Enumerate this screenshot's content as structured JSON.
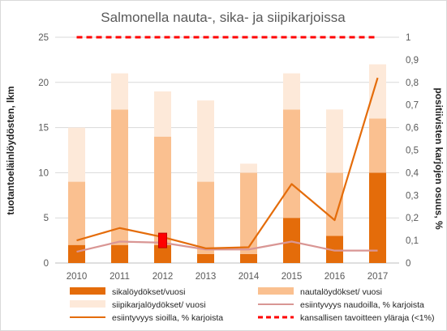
{
  "chart_data": {
    "type": "bar",
    "title": "Salmonella nauta-, sika- ja siipikarjoissa",
    "ylabel": "tuotantoeläinlöydösten, lkm",
    "y2label": "positiivisten karjojen osuus, %",
    "categories": [
      "2010",
      "2011",
      "2012",
      "2013",
      "2014",
      "2015",
      "2016",
      "2017"
    ],
    "ylim": [
      0,
      25
    ],
    "y_ticks": [
      "0",
      "5",
      "10",
      "15",
      "20",
      "25"
    ],
    "y2lim": [
      0,
      1
    ],
    "y2_ticks": [
      "0",
      "0,1",
      "0,2",
      "0,3",
      "0,4",
      "0,5",
      "0,6",
      "0,7",
      "0,8",
      "0,9",
      "1"
    ],
    "stacked_series": [
      {
        "name": "sikalöydökset/vuosi",
        "color": "#e46c0a",
        "values": [
          2,
          2,
          2,
          1,
          1,
          5,
          3,
          10
        ]
      },
      {
        "name": "nautalöydökset/ vuosi",
        "color": "#fac090",
        "values": [
          7,
          15,
          12,
          8,
          9,
          12,
          7,
          6
        ]
      },
      {
        "name": "siipikarjalöydökset/ vuosi",
        "color": "#fde9d9",
        "values": [
          6,
          4,
          5,
          9,
          1,
          4,
          7,
          6
        ]
      }
    ],
    "line_series": [
      {
        "name": "esiintyvyys naudoilla, % karjoista",
        "color": "#d99694",
        "axis": "y2",
        "values": [
          0.05,
          0.095,
          0.09,
          0.06,
          0.06,
          0.095,
          0.055,
          0.055
        ]
      },
      {
        "name": "esiintyvyys sioilla, % karjoista",
        "color": "#e46c0a",
        "axis": "y2",
        "values": [
          0.1,
          0.155,
          0.115,
          0.065,
          0.07,
          0.35,
          0.19,
          0.82
        ]
      },
      {
        "name": "kansallisen tavoitteen yläraja (<1%)",
        "color": "#ff0000",
        "axis": "y2",
        "dashed": true,
        "values": [
          1,
          1,
          1,
          1,
          1,
          1,
          1,
          1
        ]
      }
    ],
    "highlight": {
      "category": "2012",
      "value": 2.5,
      "color": "#ff0000"
    },
    "legend": [
      {
        "label": "sikalöydökset/vuosi",
        "kind": "box",
        "color": "#e46c0a"
      },
      {
        "label": "nautalöydökset/ vuosi",
        "kind": "box",
        "color": "#fac090"
      },
      {
        "label": "siipikarjalöydökset/ vuosi",
        "kind": "box",
        "color": "#fde9d9"
      },
      {
        "label": "esiintyvyys naudoilla, % karjoista",
        "kind": "line",
        "color": "#d99694"
      },
      {
        "label": "esiintyvyys sioilla, % karjoista",
        "kind": "line",
        "color": "#e46c0a"
      },
      {
        "label": "kansallisen tavoitteen yläraja (<1%)",
        "kind": "dash",
        "color": "#ff0000"
      }
    ],
    "legend_position": "bottom",
    "grid": true
  }
}
